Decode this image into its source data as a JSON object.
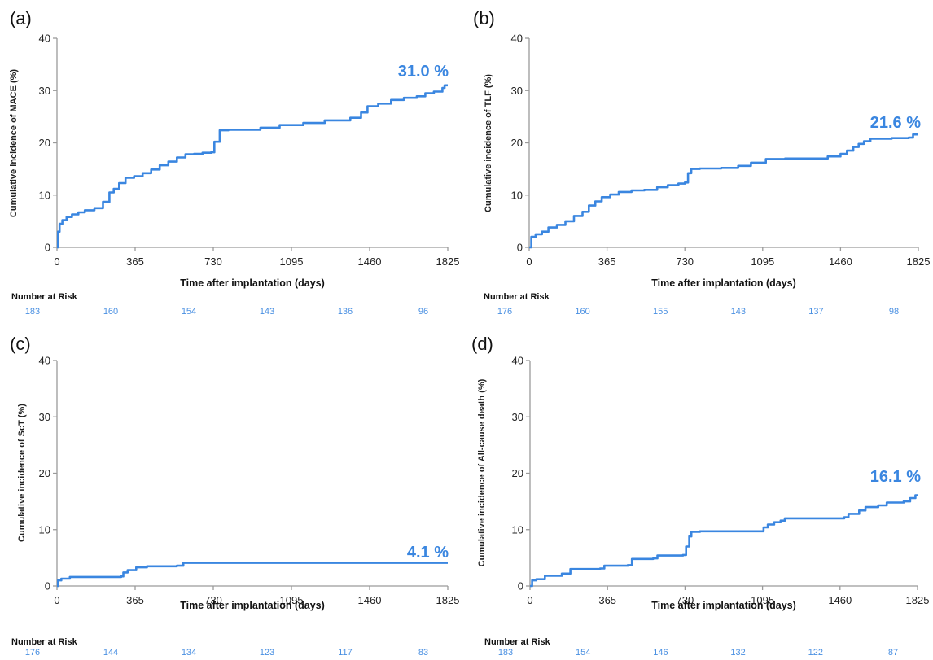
{
  "colors": {
    "curve": "#3a86e0",
    "risk": "#4a90e2",
    "axis": "#9a9a9a"
  },
  "chart_data": [
    {
      "type": "line",
      "panel_label": "(a)",
      "xlabel": "Time after implantation (days)",
      "ylabel": "Cumulative incidence of MACE (%)",
      "xlim": [
        0,
        1825
      ],
      "ylim": [
        0,
        40
      ],
      "xticks": [
        0,
        365,
        730,
        1095,
        1460,
        1825
      ],
      "yticks": [
        0,
        10,
        20,
        30,
        40
      ],
      "final_label": "31.0 %",
      "risk_title": "Number at Risk",
      "risk": [
        "183",
        "160",
        "154",
        "143",
        "136",
        "96"
      ],
      "series": [
        {
          "x": [
            0,
            5,
            12,
            25,
            45,
            70,
            100,
            130,
            175,
            215,
            245,
            265,
            290,
            320,
            360,
            400,
            440,
            480,
            520,
            560,
            600,
            640,
            680,
            720,
            735,
            760,
            800,
            870,
            950,
            1040,
            1150,
            1250,
            1370,
            1420,
            1450,
            1500,
            1560,
            1620,
            1680,
            1720,
            1760,
            1800,
            1810,
            1825
          ],
          "y": [
            0,
            3,
            4.5,
            5.2,
            5.8,
            6.3,
            6.7,
            7.1,
            7.5,
            8.7,
            10.5,
            11.2,
            12.3,
            13.3,
            13.6,
            14.2,
            14.9,
            15.7,
            16.4,
            17.2,
            17.8,
            17.9,
            18.1,
            18.2,
            20.2,
            22.4,
            22.5,
            22.5,
            22.9,
            23.4,
            23.8,
            24.3,
            24.8,
            25.8,
            27.0,
            27.5,
            28.2,
            28.6,
            28.9,
            29.5,
            29.8,
            30.5,
            31.0,
            31.0
          ]
        }
      ]
    },
    {
      "type": "line",
      "panel_label": "(b)",
      "xlabel": "Time after implantation (days)",
      "ylabel": "Cumulative incidence of TLF (%)",
      "xlim": [
        0,
        1825
      ],
      "ylim": [
        0,
        40
      ],
      "xticks": [
        0,
        365,
        730,
        1095,
        1460,
        1825
      ],
      "yticks": [
        0,
        10,
        20,
        30,
        40
      ],
      "final_label": "21.6 %",
      "risk_title": "Number at Risk",
      "risk": [
        "176",
        "160",
        "155",
        "143",
        "137",
        "98"
      ],
      "series": [
        {
          "x": [
            0,
            10,
            30,
            60,
            90,
            130,
            170,
            210,
            250,
            280,
            310,
            340,
            380,
            420,
            480,
            540,
            600,
            650,
            700,
            730,
            745,
            760,
            800,
            900,
            980,
            1040,
            1110,
            1200,
            1300,
            1400,
            1460,
            1490,
            1520,
            1545,
            1570,
            1600,
            1700,
            1780,
            1800,
            1825
          ],
          "y": [
            0,
            2.0,
            2.5,
            3.0,
            3.8,
            4.3,
            5.0,
            6.0,
            6.8,
            8.0,
            8.8,
            9.6,
            10.1,
            10.6,
            10.9,
            11.0,
            11.5,
            11.9,
            12.2,
            12.4,
            14.2,
            15.0,
            15.1,
            15.2,
            15.6,
            16.2,
            16.9,
            17.0,
            17.0,
            17.4,
            17.9,
            18.5,
            19.2,
            19.8,
            20.3,
            20.8,
            20.9,
            21.0,
            21.6,
            21.6
          ]
        }
      ]
    },
    {
      "type": "line",
      "panel_label": "(c)",
      "xlabel": "Time after implantation (days)",
      "ylabel": "Cumulative incidence of ScT (%)",
      "xlim": [
        0,
        1825
      ],
      "ylim": [
        0,
        40
      ],
      "xticks": [
        0,
        365,
        730,
        1095,
        1460,
        1825
      ],
      "yticks": [
        0,
        10,
        20,
        30,
        40
      ],
      "final_label": "4.1 %",
      "risk_title": "Number at Risk",
      "risk": [
        "176",
        "144",
        "134",
        "123",
        "117",
        "83"
      ],
      "series": [
        {
          "x": [
            0,
            5,
            20,
            60,
            300,
            310,
            330,
            370,
            420,
            560,
            590,
            900,
            1825
          ],
          "y": [
            0,
            1.0,
            1.3,
            1.6,
            1.7,
            2.4,
            2.8,
            3.3,
            3.5,
            3.6,
            4.1,
            4.1,
            4.1
          ]
        }
      ]
    },
    {
      "type": "line",
      "panel_label": "(d)",
      "xlabel": "Time after implantation (days)",
      "ylabel": "Cumulative incidence of All-cause death (%)",
      "xlim": [
        0,
        1825
      ],
      "ylim": [
        0,
        40
      ],
      "xticks": [
        0,
        365,
        730,
        1095,
        1460,
        1825
      ],
      "yticks": [
        0,
        10,
        20,
        30,
        40
      ],
      "final_label": "16.1 %",
      "risk_title": "Number at Risk",
      "risk": [
        "183",
        "154",
        "146",
        "132",
        "122",
        "87"
      ],
      "series": [
        {
          "x": [
            0,
            10,
            30,
            70,
            150,
            190,
            330,
            350,
            460,
            480,
            580,
            600,
            720,
            735,
            750,
            760,
            800,
            1100,
            1120,
            1150,
            1180,
            1200,
            1480,
            1500,
            1550,
            1580,
            1640,
            1680,
            1760,
            1790,
            1815,
            1825
          ],
          "y": [
            0,
            1.0,
            1.2,
            1.8,
            2.2,
            3.0,
            3.1,
            3.6,
            3.7,
            4.8,
            4.9,
            5.4,
            5.5,
            7.0,
            8.8,
            9.6,
            9.7,
            10.4,
            10.9,
            11.3,
            11.6,
            12.0,
            12.2,
            12.8,
            13.4,
            14.0,
            14.3,
            14.8,
            15.0,
            15.6,
            16.1,
            16.1
          ]
        }
      ]
    }
  ]
}
